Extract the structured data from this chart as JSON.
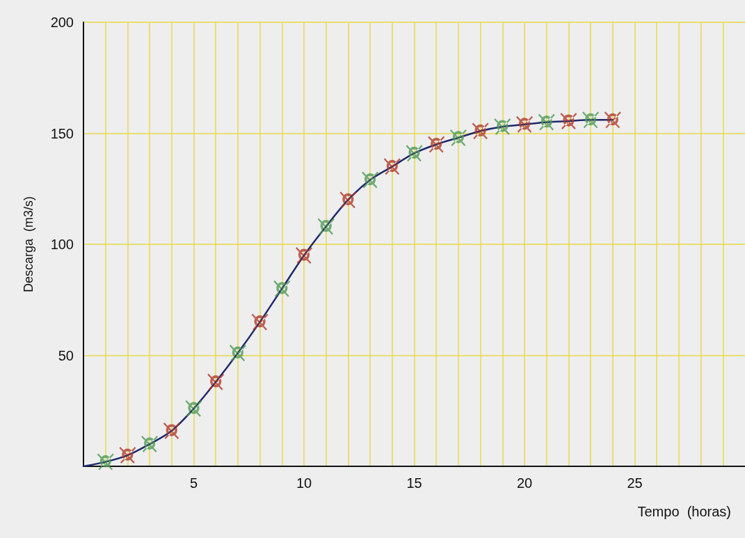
{
  "chart_data": {
    "type": "line",
    "xlabel": "Tempo  (horas)",
    "ylabel": "Descarga  (m3/s)",
    "xlim": [
      0,
      30
    ],
    "ylim": [
      0,
      200
    ],
    "xticks": [
      {
        "value": 1,
        "label": null
      },
      {
        "value": 2,
        "label": null
      },
      {
        "value": 3,
        "label": null
      },
      {
        "value": 4,
        "label": null
      },
      5,
      {
        "value": 6,
        "label": null
      },
      {
        "value": 7,
        "label": null
      },
      {
        "value": 8,
        "label": null
      },
      {
        "value": 9,
        "label": null
      },
      10,
      {
        "value": 11,
        "label": null
      },
      {
        "value": 12,
        "label": null
      },
      {
        "value": 13,
        "label": null
      },
      {
        "value": 14,
        "label": null
      },
      15,
      {
        "value": 16,
        "label": null
      },
      {
        "value": 17,
        "label": null
      },
      {
        "value": 18,
        "label": null
      },
      {
        "value": 19,
        "label": null
      },
      20,
      {
        "value": 21,
        "label": null
      },
      {
        "value": 22,
        "label": null
      },
      {
        "value": 23,
        "label": null
      },
      {
        "value": 24,
        "label": null
      },
      25,
      {
        "value": 26,
        "label": null
      },
      {
        "value": 27,
        "label": null
      },
      {
        "value": 28,
        "label": null
      },
      {
        "value": 29,
        "label": null
      }
    ],
    "yticks": [
      50,
      100,
      150,
      200
    ],
    "grid": true,
    "series": [
      {
        "marker": "none",
        "color": "#1f2a6b",
        "x": [
          0,
          1,
          2,
          3,
          4,
          5,
          6,
          7,
          8,
          9,
          10,
          11,
          12,
          13,
          14,
          15,
          16,
          17,
          18,
          19,
          20,
          21,
          22,
          23,
          24
        ],
        "values": [
          0,
          2,
          5,
          10,
          16,
          26,
          38,
          51,
          65,
          80,
          95,
          108,
          120,
          129,
          135,
          141,
          145,
          148,
          151,
          153,
          154,
          155,
          155.5,
          156,
          156
        ]
      },
      {
        "type": "scatter",
        "marker": "cross",
        "color": "#b03a2a",
        "x": [
          2,
          4,
          6,
          8,
          10,
          12,
          14,
          16,
          18,
          20,
          22,
          24
        ],
        "values": [
          5,
          16,
          38,
          65,
          95,
          120,
          135,
          145,
          151,
          154,
          155.5,
          156
        ]
      },
      {
        "type": "scatter",
        "marker": "cross",
        "color": "#4f9a55",
        "x": [
          1,
          3,
          5,
          7,
          9,
          11,
          13,
          15,
          17,
          19,
          21,
          23
        ],
        "values": [
          2,
          10,
          26,
          51,
          80,
          108,
          129,
          141,
          148,
          153,
          155,
          156
        ]
      }
    ]
  }
}
